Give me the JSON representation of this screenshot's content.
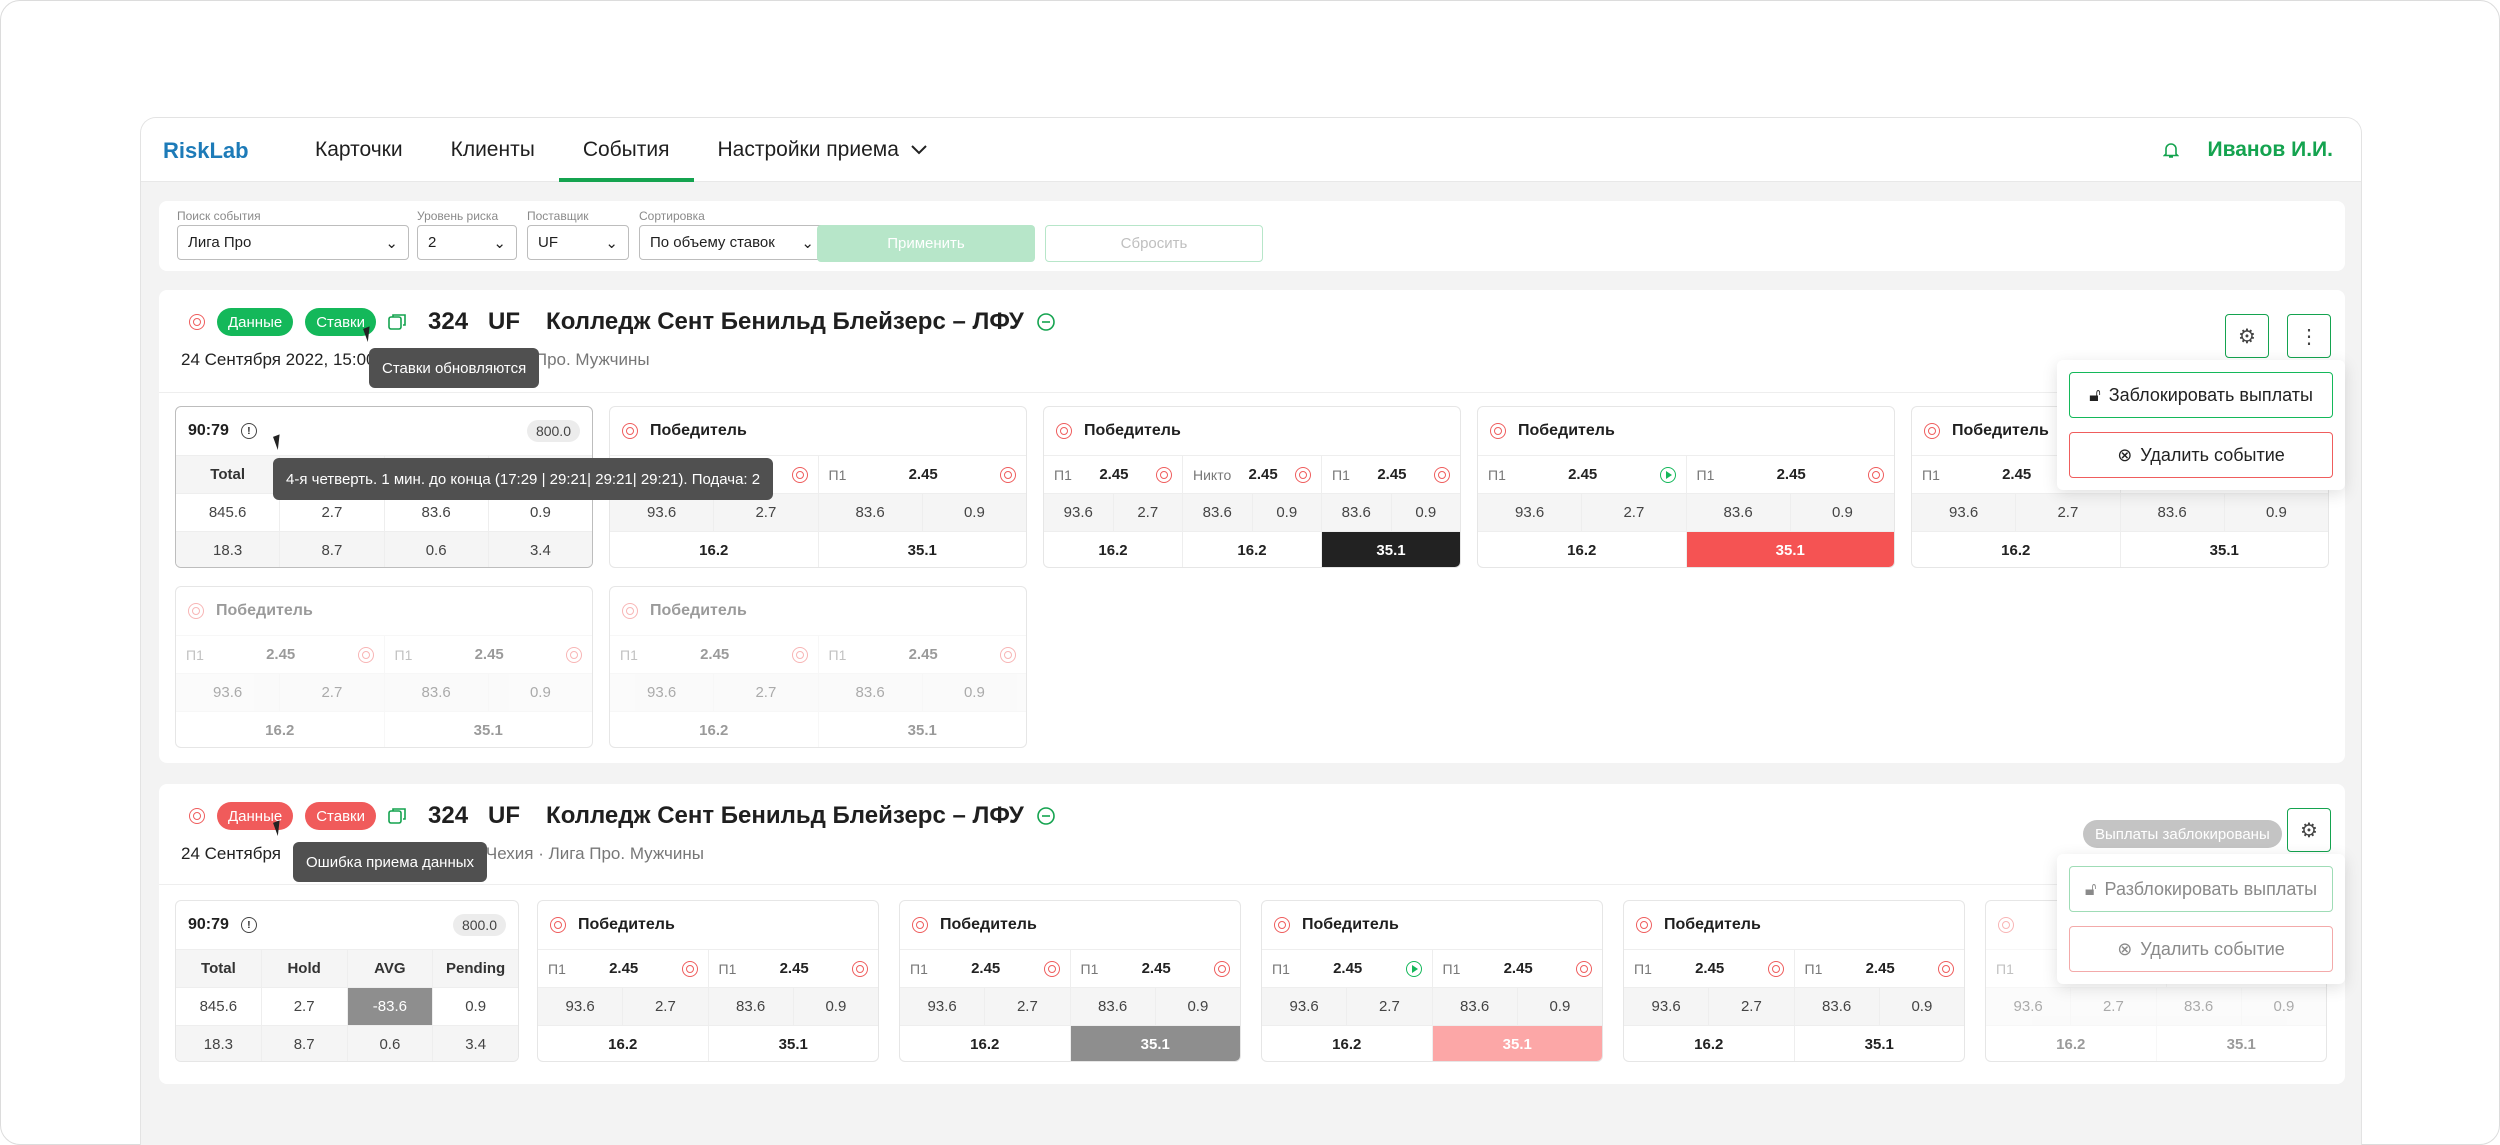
{
  "app": {
    "logo": "RiskLab",
    "nav": [
      "Карточки",
      "Клиенты",
      "События",
      "Настройки приема"
    ],
    "user": "Иванов И.И."
  },
  "filters": {
    "search": {
      "label": "Поиск события",
      "value": "Лига Про"
    },
    "risk": {
      "label": "Уровень риска",
      "value": "2"
    },
    "provider": {
      "label": "Поставщик",
      "value": "UF"
    },
    "sort": {
      "label": "Сортировка",
      "value": "По объему ставок"
    },
    "apply": "Применить",
    "reset": "Сбросить"
  },
  "event1": {
    "pill_data": "Данные",
    "pill_bets": "Ставки",
    "number": "324",
    "provider": "UF",
    "title": "Колледж Сент Бенильд Блейзерс – ЛФУ",
    "date": "24 Сентября 2022, 15:00",
    "sub": "Чехия · Лига Про. Мужчины",
    "tip_bets": "Ставки обновляются",
    "tip_period": "4-я четверть. 1 мин. до конца (17:29 | 29:21| 29:21| 29:21). Подача: 2",
    "menu": [
      "Заблокировать выплаты",
      "Удалить событие"
    ]
  },
  "event2": {
    "pill_data": "Данные",
    "pill_bets": "Ставки",
    "number": "324",
    "provider": "UF",
    "title": "Колледж Сент Бенильд Блейзерс – ЛФУ",
    "date": "24 Сентября",
    "sub": "теннис · Чехия · Лига Про. Мужчины",
    "tip_data": "Ошибка приема данных",
    "chip": "Выплаты заблокированы",
    "menu": [
      "Разблокировать выплаты",
      "Удалить событие"
    ]
  },
  "stats": {
    "score": "90:79",
    "badge": "800.0",
    "head": [
      "Total",
      "Hold",
      "AVG",
      "Pending"
    ],
    "r1": [
      "845.6",
      "2.7",
      "-83.6",
      "0.9"
    ],
    "r2": [
      "18.3",
      "8.7",
      "0.6",
      "3.4"
    ]
  },
  "market": {
    "title": "Победитель",
    "p1": "П1",
    "nobody": "Никто",
    "odd": "2.45",
    "r": [
      "93.6",
      "2.7",
      "83.6",
      "0.9"
    ],
    "t1": "16.2",
    "t2": "35.1"
  },
  "colors": {
    "green": "#14b85a",
    "red": "#ef5d5d",
    "dark": "#222222",
    "lightred": "#fca7a7",
    "gray": "#8e8e8e"
  }
}
